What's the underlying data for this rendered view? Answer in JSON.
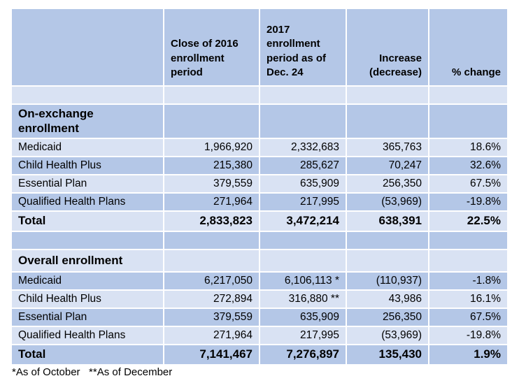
{
  "chart_data": {
    "type": "table",
    "columns": [
      {
        "label": "",
        "align": "left"
      },
      {
        "label": "Close of 2016 enrollment period",
        "align": "left"
      },
      {
        "label": "2017 enrollment period as of Dec. 24",
        "align": "left"
      },
      {
        "label": "Increase (decrease)",
        "align": "right"
      },
      {
        "label": "% change",
        "align": "right"
      }
    ],
    "rows": [
      {
        "kind": "spacer",
        "shade": "light",
        "cells": [
          "",
          "",
          "",
          "",
          ""
        ]
      },
      {
        "kind": "section",
        "shade": "medium",
        "cells": [
          "On-exchange enrollment",
          "",
          "",
          "",
          ""
        ]
      },
      {
        "kind": "data",
        "shade": "light",
        "cells": [
          "Medicaid",
          "1,966,920",
          "2,332,683",
          "365,763",
          "18.6%"
        ]
      },
      {
        "kind": "data",
        "shade": "medium",
        "cells": [
          "Child Health Plus",
          "215,380",
          "285,627",
          "70,247",
          "32.6%"
        ]
      },
      {
        "kind": "data",
        "shade": "light",
        "cells": [
          "Essential Plan",
          "379,559",
          "635,909",
          "256,350",
          "67.5%"
        ]
      },
      {
        "kind": "data",
        "shade": "medium",
        "cells": [
          "Qualified Health Plans",
          "271,964",
          "217,995",
          "(53,969)",
          "-19.8%"
        ]
      },
      {
        "kind": "total",
        "shade": "light",
        "cells": [
          "Total",
          "2,833,823",
          "3,472,214",
          "638,391",
          "22.5%"
        ]
      },
      {
        "kind": "spacer",
        "shade": "medium",
        "cells": [
          "",
          "",
          "",
          "",
          ""
        ]
      },
      {
        "kind": "section",
        "shade": "light",
        "cells": [
          "Overall enrollment",
          "",
          "",
          "",
          ""
        ]
      },
      {
        "kind": "data",
        "shade": "medium",
        "cells": [
          "Medicaid",
          "6,217,050",
          "6,106,113 *",
          "(110,937)",
          "-1.8%"
        ]
      },
      {
        "kind": "data",
        "shade": "light",
        "cells": [
          "Child Health Plus",
          "272,894",
          "316,880 **",
          "43,986",
          "16.1%"
        ]
      },
      {
        "kind": "data",
        "shade": "medium",
        "cells": [
          "Essential Plan",
          "379,559",
          "635,909",
          "256,350",
          "67.5%"
        ]
      },
      {
        "kind": "data",
        "shade": "light",
        "cells": [
          "Qualified Health Plans",
          "271,964",
          "217,995",
          "(53,969)",
          "-19.8%"
        ]
      },
      {
        "kind": "total",
        "shade": "medium",
        "cells": [
          "Total",
          "7,141,467",
          "7,276,897",
          "135,430",
          "1.9%"
        ]
      }
    ],
    "sections_numeric": [
      {
        "title": "On-exchange enrollment",
        "rows": [
          {
            "label": "Medicaid",
            "close_2016": 1966920,
            "period_2017": 2332683,
            "increase": 365763,
            "pct_change": 18.6
          },
          {
            "label": "Child Health Plus",
            "close_2016": 215380,
            "period_2017": 285627,
            "increase": 70247,
            "pct_change": 32.6
          },
          {
            "label": "Essential Plan",
            "close_2016": 379559,
            "period_2017": 635909,
            "increase": 256350,
            "pct_change": 67.5
          },
          {
            "label": "Qualified Health Plans",
            "close_2016": 271964,
            "period_2017": 217995,
            "increase": -53969,
            "pct_change": -19.8
          }
        ],
        "total": {
          "label": "Total",
          "close_2016": 2833823,
          "period_2017": 3472214,
          "increase": 638391,
          "pct_change": 22.5
        }
      },
      {
        "title": "Overall enrollment",
        "rows": [
          {
            "label": "Medicaid",
            "close_2016": 6217050,
            "period_2017": 6106113,
            "period_2017_note": "*",
            "increase": -110937,
            "pct_change": -1.8
          },
          {
            "label": "Child Health Plus",
            "close_2016": 272894,
            "period_2017": 316880,
            "period_2017_note": "**",
            "increase": 43986,
            "pct_change": 16.1
          },
          {
            "label": "Essential Plan",
            "close_2016": 379559,
            "period_2017": 635909,
            "increase": 256350,
            "pct_change": 67.5
          },
          {
            "label": "Qualified Health Plans",
            "close_2016": 271964,
            "period_2017": 217995,
            "increase": -53969,
            "pct_change": -19.8
          }
        ],
        "total": {
          "label": "Total",
          "close_2016": 7141467,
          "period_2017": 7276897,
          "increase": 135430,
          "pct_change": 1.9
        }
      }
    ],
    "footnote": "*As of October   **As of December",
    "colors": {
      "band_medium": "#b4c7e7",
      "band_light": "#d9e2f3",
      "gridline": "#ffffff",
      "text": "#000000",
      "page_background": "#ffffff"
    },
    "layout_hints": {
      "grid": "white 2px gridlines between all cells",
      "banding": "alternating medium/light blue rows starting with medium header",
      "header_valign": "bottom"
    }
  }
}
